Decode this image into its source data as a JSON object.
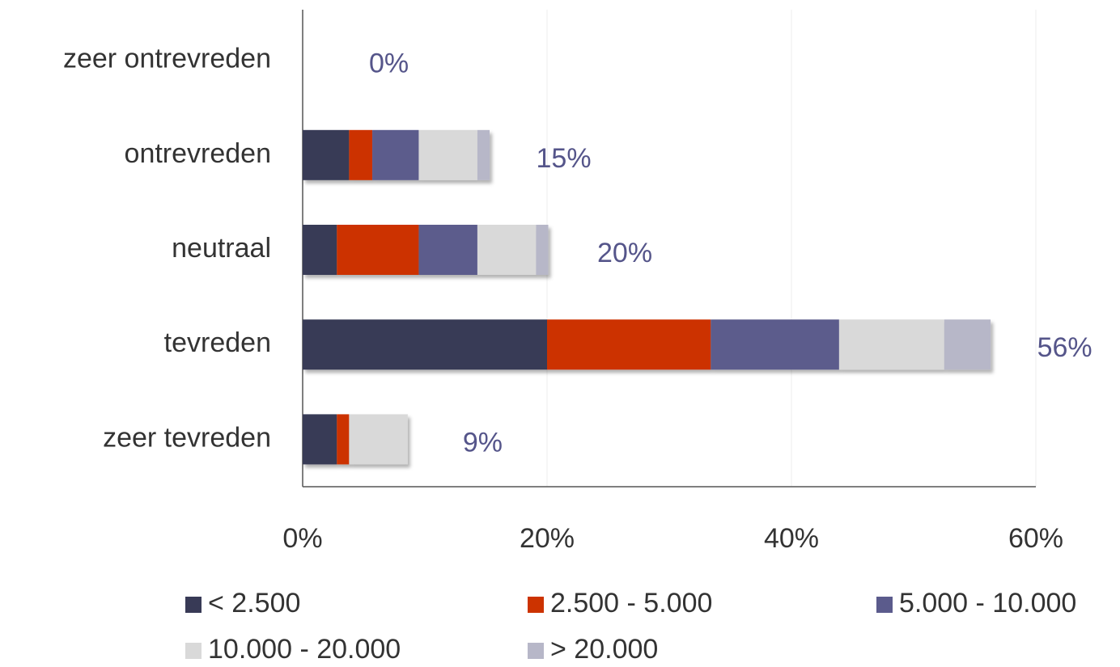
{
  "chart_data": {
    "type": "stacked_barh",
    "categories": [
      "zeer ontrevreden",
      "ontrevreden",
      "neutraal",
      "tevreden",
      "zeer tevreden"
    ],
    "series": [
      {
        "name": "< 2.500",
        "color": "#383a56",
        "values": [
          0,
          3.8,
          2.8,
          20.0,
          2.8
        ]
      },
      {
        "name": "2.500 - 5.000",
        "color": "#cc3300",
        "values": [
          0,
          1.9,
          6.7,
          13.4,
          1.0
        ]
      },
      {
        "name": "5.000 - 10.000",
        "color": "#5b5b8c",
        "values": [
          0,
          3.8,
          4.8,
          10.5,
          0
        ]
      },
      {
        "name": "10.000 - 20.000",
        "color": "#d9d9d9",
        "values": [
          0,
          4.8,
          4.8,
          8.6,
          4.8
        ]
      },
      {
        "name": "> 20.000",
        "color": "#b7b7c8",
        "values": [
          0,
          1.0,
          1.0,
          3.8,
          0
        ]
      }
    ],
    "totals": [
      0,
      15,
      20,
      56,
      9
    ],
    "total_labels": [
      "0%",
      "15%",
      "20%",
      "56%",
      "9%"
    ],
    "xlim": [
      0,
      60
    ],
    "xticks": [
      {
        "value": 0,
        "label": "0%"
      },
      {
        "value": 20,
        "label": "20%"
      },
      {
        "value": 40,
        "label": "40%"
      },
      {
        "value": 60,
        "label": "60%"
      }
    ],
    "grid": true,
    "legend": "bottom"
  }
}
